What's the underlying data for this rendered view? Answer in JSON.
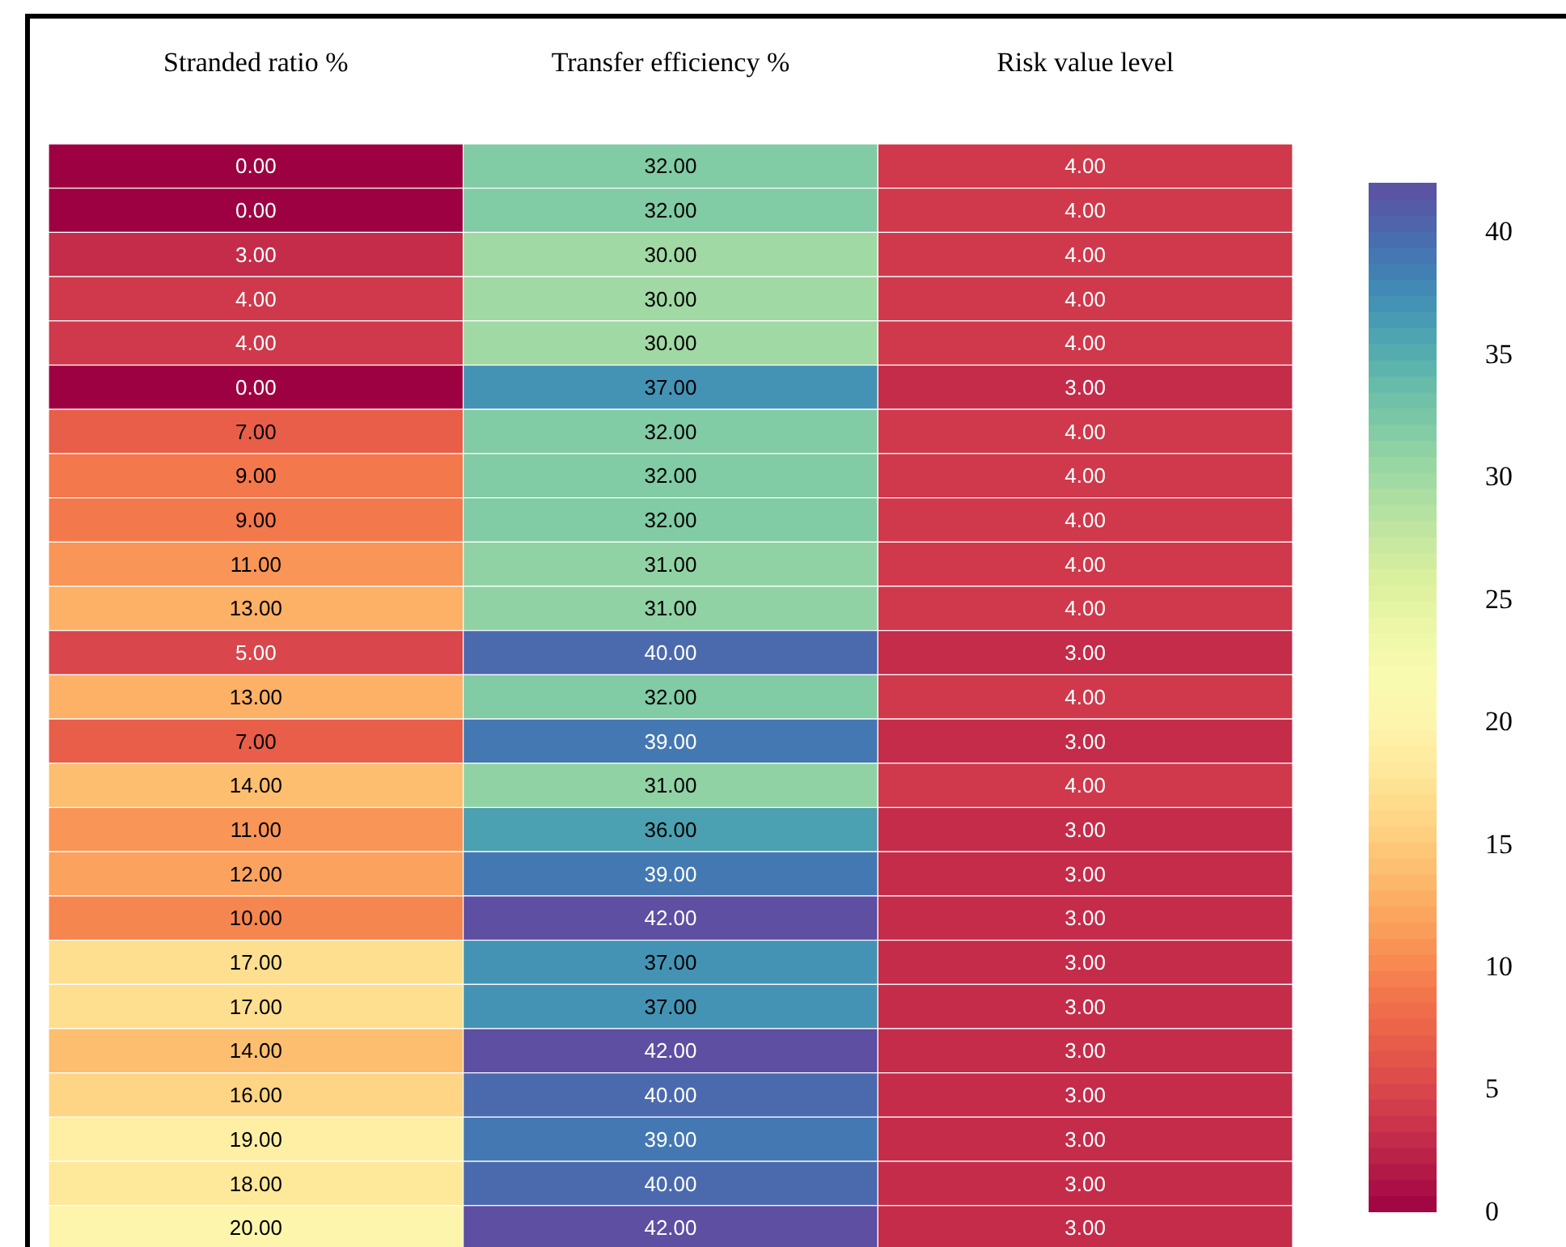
{
  "chart_data": {
    "type": "heatmap",
    "categories": [
      "Stranded ratio %",
      "Transfer efficiency %",
      "Risk value level"
    ],
    "y_categories": [
      null,
      null,
      null,
      null,
      null,
      null,
      null,
      null,
      null,
      null,
      null,
      null,
      null,
      null,
      null,
      null,
      null,
      null,
      null,
      null,
      null,
      null,
      null,
      null,
      null
    ],
    "cells": [
      [
        0,
        32,
        4
      ],
      [
        0,
        32,
        4
      ],
      [
        3,
        30,
        4
      ],
      [
        4,
        30,
        4
      ],
      [
        4,
        30,
        4
      ],
      [
        0,
        37,
        3
      ],
      [
        7,
        32,
        4
      ],
      [
        9,
        32,
        4
      ],
      [
        9,
        32,
        4
      ],
      [
        11,
        31,
        4
      ],
      [
        13,
        31,
        4
      ],
      [
        5,
        40,
        3
      ],
      [
        13,
        32,
        4
      ],
      [
        7,
        39,
        3
      ],
      [
        14,
        31,
        4
      ],
      [
        11,
        36,
        3
      ],
      [
        12,
        39,
        3
      ],
      [
        10,
        42,
        3
      ],
      [
        17,
        37,
        3
      ],
      [
        17,
        37,
        3
      ],
      [
        14,
        42,
        3
      ],
      [
        16,
        40,
        3
      ],
      [
        19,
        39,
        3
      ],
      [
        18,
        40,
        3
      ],
      [
        20,
        42,
        3
      ]
    ],
    "cell_labels": [
      [
        "0.00",
        "32.00",
        "4.00"
      ],
      [
        "0.00",
        "32.00",
        "4.00"
      ],
      [
        "3.00",
        "30.00",
        "4.00"
      ],
      [
        "4.00",
        "30.00",
        "4.00"
      ],
      [
        "4.00",
        "30.00",
        "4.00"
      ],
      [
        "0.00",
        "37.00",
        "3.00"
      ],
      [
        "7.00",
        "32.00",
        "4.00"
      ],
      [
        "9.00",
        "32.00",
        "4.00"
      ],
      [
        "9.00",
        "32.00",
        "4.00"
      ],
      [
        "11.00",
        "31.00",
        "4.00"
      ],
      [
        "13.00",
        "31.00",
        "4.00"
      ],
      [
        "5.00",
        "40.00",
        "3.00"
      ],
      [
        "13.00",
        "32.00",
        "4.00"
      ],
      [
        "7.00",
        "39.00",
        "3.00"
      ],
      [
        "14.00",
        "31.00",
        "4.00"
      ],
      [
        "11.00",
        "36.00",
        "3.00"
      ],
      [
        "12.00",
        "39.00",
        "3.00"
      ],
      [
        "10.00",
        "42.00",
        "3.00"
      ],
      [
        "17.00",
        "37.00",
        "3.00"
      ],
      [
        "17.00",
        "37.00",
        "3.00"
      ],
      [
        "14.00",
        "42.00",
        "3.00"
      ],
      [
        "16.00",
        "40.00",
        "3.00"
      ],
      [
        "19.00",
        "39.00",
        "3.00"
      ],
      [
        "18.00",
        "40.00",
        "3.00"
      ],
      [
        "20.00",
        "42.00",
        "3.00"
      ]
    ],
    "clim": [
      0,
      42
    ],
    "cticks": [
      0,
      5,
      10,
      15,
      20,
      25,
      30,
      35,
      40
    ]
  }
}
